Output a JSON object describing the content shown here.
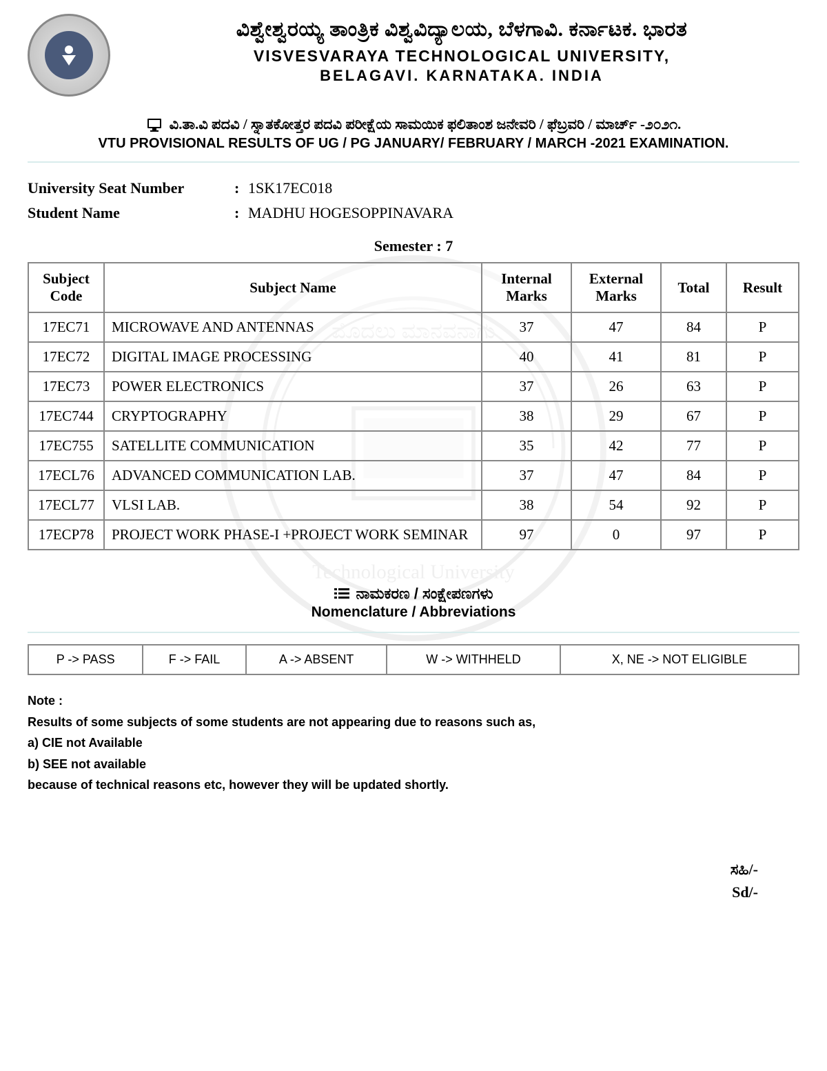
{
  "header": {
    "kannada_title": "ವಿಶ್ವೇಶ್ವರಯ್ಯ ತಾಂತ್ರಿಕ ವಿಶ್ವವಿದ್ಯಾಲಯ, ಬೆಳಗಾವಿ. ಕರ್ನಾಟಕ. ಭಾರತ",
    "english_title": "VISVESVARAYA TECHNOLOGICAL UNIVERSITY,",
    "english_subtitle": "BELAGAVI. KARNATAKA. INDIA"
  },
  "notice": {
    "kannada": "ವಿ.ತಾ.ವಿ ಪದವಿ / ಸ್ನಾತಕೋತ್ತರ ಪದವಿ ಪರೀಕ್ಷೆಯ ಸಾಮಯಿಕ ಫಲಿತಾಂಶ ಜನೇವರಿ / ಫೆಬ್ರವರಿ / ಮಾರ್ಚ್ -೨೦೨೧.",
    "english": "VTU PROVISIONAL RESULTS OF UG / PG JANUARY/ FEBRUARY / MARCH -2021 EXAMINATION."
  },
  "student": {
    "usn_label": "University Seat Number",
    "usn_value": "1SK17EC018",
    "name_label": "Student Name",
    "name_value": "MADHU HOGESOPPINAVARA"
  },
  "semester_label": "Semester : 7",
  "table": {
    "columns": [
      "Subject Code",
      "Subject Name",
      "Internal Marks",
      "External Marks",
      "Total",
      "Result"
    ],
    "col_widths": [
      "110px",
      "auto",
      "130px",
      "130px",
      "95px",
      "105px"
    ],
    "rows": [
      {
        "code": "17EC71",
        "name": "MICROWAVE AND ANTENNAS",
        "internal": "37",
        "external": "47",
        "total": "84",
        "result": "P"
      },
      {
        "code": "17EC72",
        "name": "DIGITAL IMAGE PROCESSING",
        "internal": "40",
        "external": "41",
        "total": "81",
        "result": "P"
      },
      {
        "code": "17EC73",
        "name": "POWER ELECTRONICS",
        "internal": "37",
        "external": "26",
        "total": "63",
        "result": "P"
      },
      {
        "code": "17EC744",
        "name": "CRYPTOGRAPHY",
        "internal": "38",
        "external": "29",
        "total": "67",
        "result": "P"
      },
      {
        "code": "17EC755",
        "name": "SATELLITE COMMUNICATION",
        "internal": "35",
        "external": "42",
        "total": "77",
        "result": "P"
      },
      {
        "code": "17ECL76",
        "name": "ADVANCED COMMUNICATION LAB.",
        "internal": "37",
        "external": "47",
        "total": "84",
        "result": "P"
      },
      {
        "code": "17ECL77",
        "name": "VLSI LAB.",
        "internal": "38",
        "external": "54",
        "total": "92",
        "result": "P"
      },
      {
        "code": "17ECP78",
        "name": "PROJECT WORK PHASE-I +PROJECT WORK SEMINAR",
        "internal": "97",
        "external": "0",
        "total": "97",
        "result": "P"
      }
    ]
  },
  "nomenclature": {
    "kannada": "ನಾಮಕರಣ / ಸಂಕ್ಷೇಪಣಗಳು",
    "english": "Nomenclature / Abbreviations",
    "items": [
      "P -> PASS",
      "F -> FAIL",
      "A -> ABSENT",
      "W -> WITHHELD",
      "X, NE -> NOT ELIGIBLE"
    ]
  },
  "note": {
    "heading": "Note :",
    "lines": [
      "Results of some subjects of some students are not appearing due to reasons such as,",
      "a) CIE not Available",
      "b) SEE not available",
      "because of technical reasons etc, however they will be updated shortly."
    ]
  },
  "signature": {
    "kannada": "ಸಹಿ/-",
    "english": "Sd/-"
  },
  "colors": {
    "border": "#888888",
    "divider": "#d8ecec",
    "background": "#ffffff",
    "text": "#000000"
  }
}
